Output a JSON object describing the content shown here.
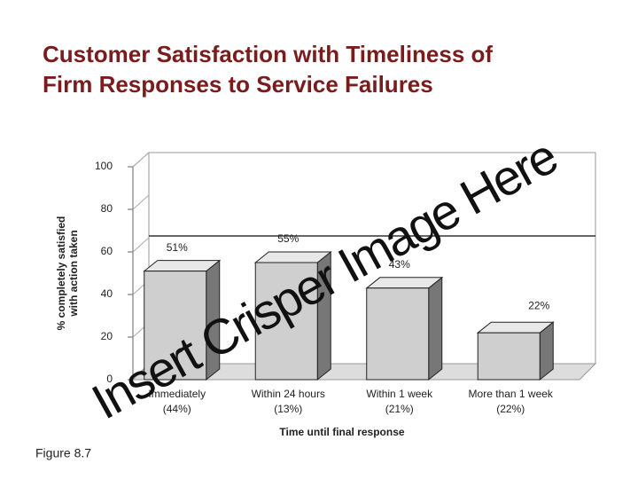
{
  "chart_data": {
    "type": "bar",
    "title": [
      "Customer Satisfaction with Timeliness of",
      "Firm Responses to Service Failures"
    ],
    "y_label": [
      "% completely satisfied",
      "with action taken"
    ],
    "x_label": "Time until final response",
    "categories": [
      "Immediately",
      "Within 24 hours",
      "Within 1 week",
      "More than 1 week"
    ],
    "category_notes": [
      "(44%)",
      "(13%)",
      "(21%)",
      "(22%)"
    ],
    "values": [
      51,
      55,
      43,
      22
    ],
    "value_labels": [
      "51%",
      "55%",
      "43%",
      "22%"
    ],
    "color": "#cfcfcf",
    "ylim": [
      0,
      100
    ],
    "yticks": [
      0,
      20,
      40,
      60,
      80,
      100
    ],
    "caption": "Figure 8.7",
    "overlay": "Insert Crisper Image Here"
  }
}
